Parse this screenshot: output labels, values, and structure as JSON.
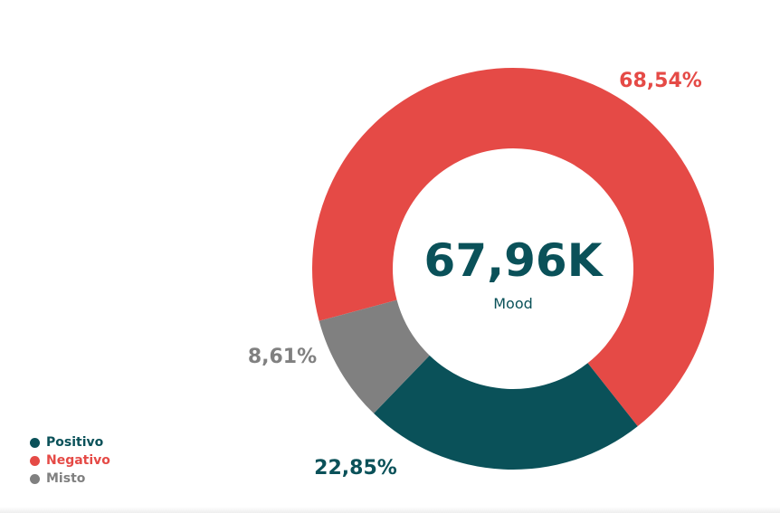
{
  "chart_data": {
    "type": "pie",
    "style": "donut",
    "center_value": "67,96K",
    "center_label": "Mood",
    "slices": [
      {
        "name": "Positivo",
        "value": 22.85,
        "label": "22,85%",
        "color": "#0a5159"
      },
      {
        "name": "Negativo",
        "value": 68.54,
        "label": "68,54%",
        "color": "#e54a46"
      },
      {
        "name": "Misto",
        "value": 8.61,
        "label": "8,61%",
        "color": "#808080"
      }
    ],
    "legend_position": "bottom-left"
  }
}
